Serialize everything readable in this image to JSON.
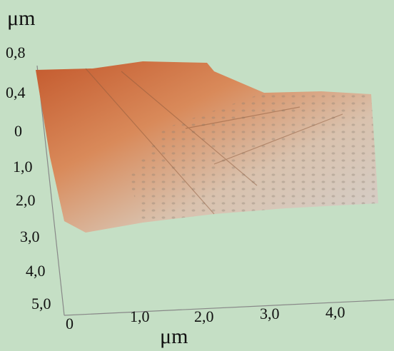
{
  "z_axis": {
    "unit": "μm",
    "labels": [
      "0,8",
      "0,4"
    ]
  },
  "y_axis": {
    "labels": [
      "0",
      "1,0",
      "2,0",
      "3,0",
      "4,0",
      "5,0"
    ]
  },
  "x_axis": {
    "labels": [
      "0",
      "1,0",
      "2,0",
      "3,0",
      "4,0"
    ],
    "unit": "μm"
  }
}
